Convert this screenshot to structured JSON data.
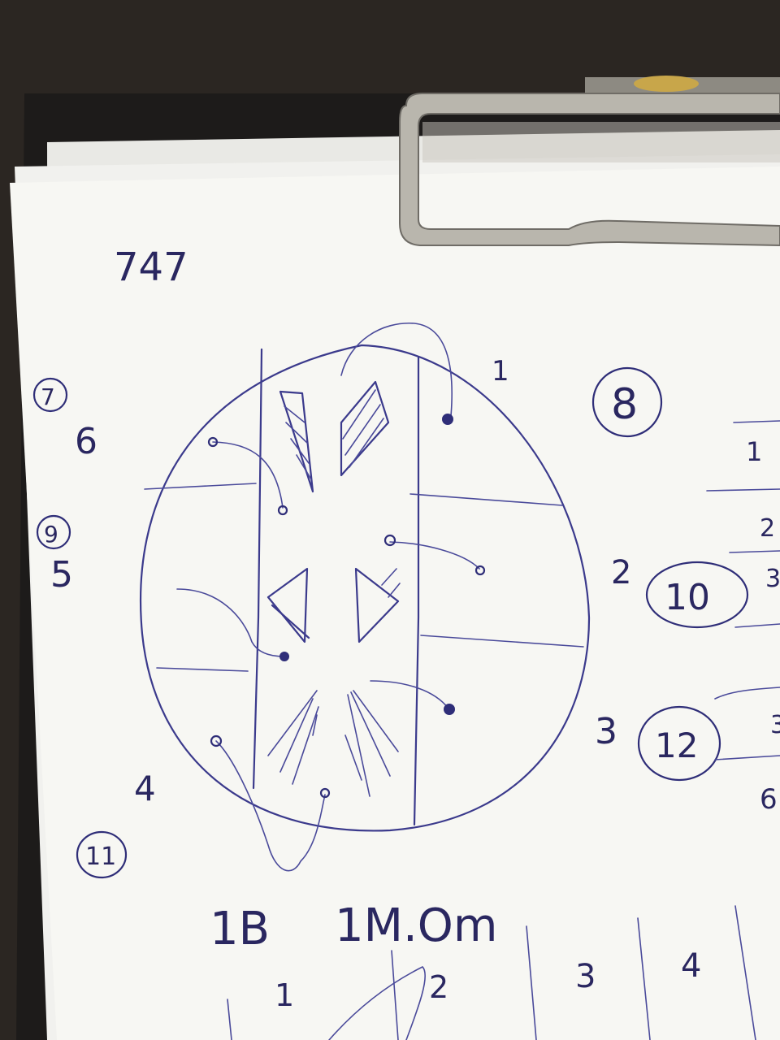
{
  "labels": {
    "header_number": "747",
    "circled": [
      "7",
      "8",
      "9",
      "10",
      "11",
      "12"
    ],
    "side_numbers": [
      "1",
      "2",
      "3",
      "4",
      "5",
      "6"
    ],
    "right_table_column": [
      "1",
      "2",
      "3",
      "3",
      "6"
    ],
    "bottom_text_left": "1B",
    "bottom_text_mid": "1M.Om",
    "bottom_columns": [
      "1",
      "2",
      "3",
      "4"
    ]
  },
  "colors": {
    "ink": "#3b3a8c",
    "paper": "#f7f7f3",
    "background": "#2b2622",
    "clip_metal": "#b9b6ad"
  }
}
